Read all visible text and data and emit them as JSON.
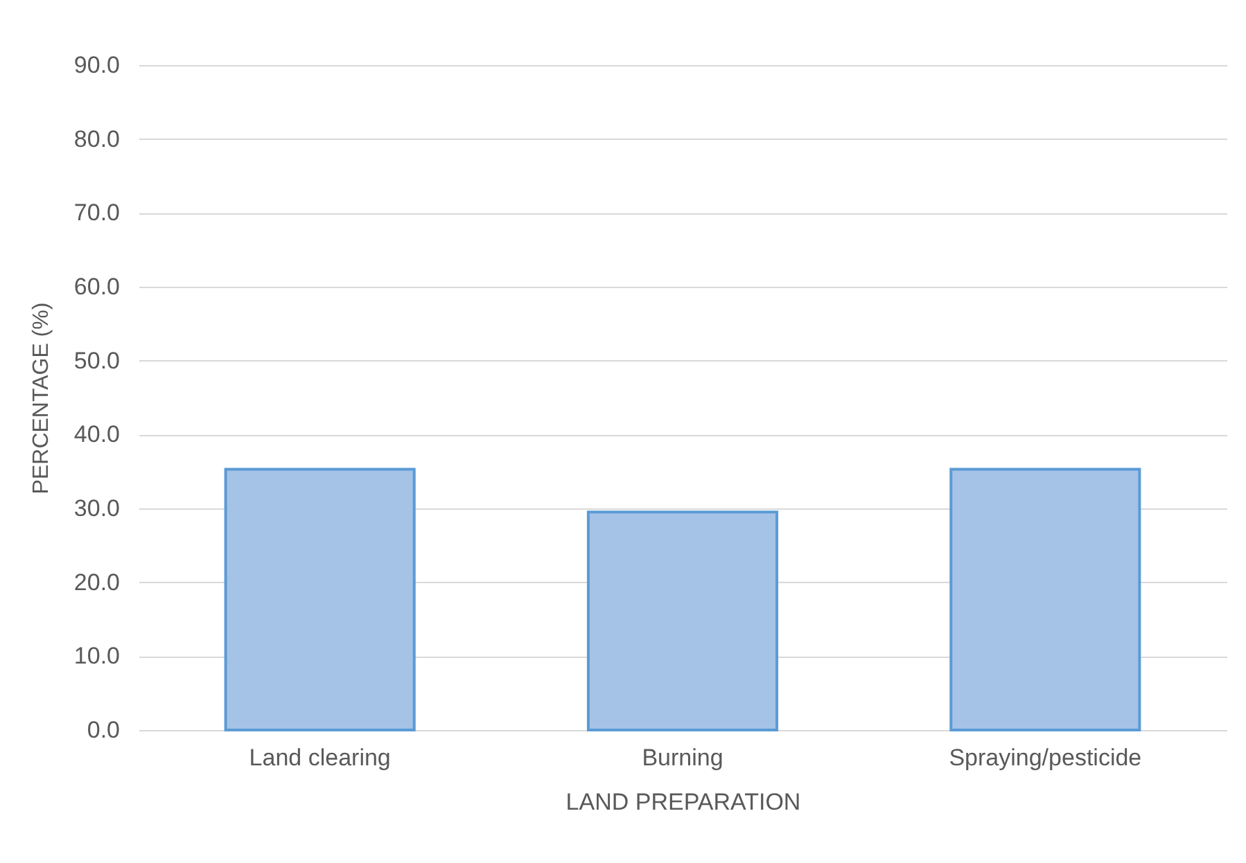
{
  "chart_data": {
    "type": "bar",
    "xlabel": "LAND PREPARATION",
    "ylabel": "PERCENTAGE (%)",
    "categories": [
      "Land clearing",
      "Burning",
      "Spraying/pesticide"
    ],
    "values": [
      35.3,
      29.5,
      35.3
    ],
    "color": "#a5c3e7",
    "ylim": [
      0,
      90
    ],
    "yticks": [
      {
        "value": 0,
        "label": "0.0"
      },
      {
        "value": 10,
        "label": "10.0"
      },
      {
        "value": 20,
        "label": "20.0"
      },
      {
        "value": 30,
        "label": "30.0"
      },
      {
        "value": 40,
        "label": "40.0"
      },
      {
        "value": 50,
        "label": "50.0"
      },
      {
        "value": 60,
        "label": "60.0"
      },
      {
        "value": 70,
        "label": "70.0"
      },
      {
        "value": 80,
        "label": "80.0"
      },
      {
        "value": 90,
        "label": "90.0"
      }
    ],
    "grid": "y"
  }
}
